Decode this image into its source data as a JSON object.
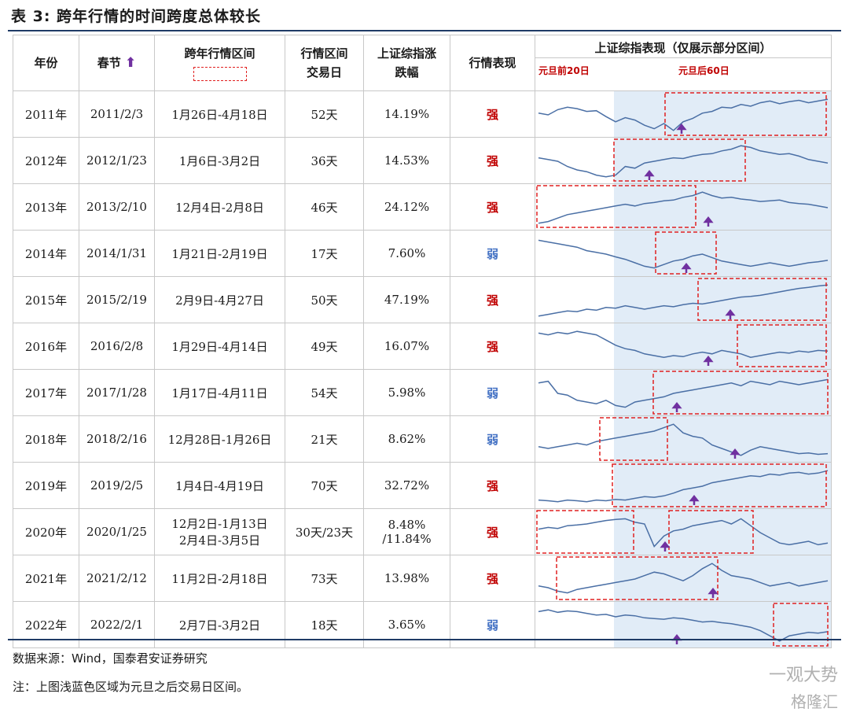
{
  "title": "表 3:  跨年行情的时间跨度总体较长",
  "headers": {
    "year": "年份",
    "spring": "春节",
    "range_l1": "跨年行情区间",
    "days_l1": "行情区间",
    "days_l2": "交易日",
    "gain_l1": "上证综指涨",
    "gain_l2": "跌幅",
    "perf": "行情表现",
    "chart": "上证综指表现（仅展示部分区间）",
    "label_before": "元旦前20日",
    "label_after": "元旦后60日"
  },
  "icons": {
    "arrow": "up-arrow-icon",
    "arrow_color": "#7030a0"
  },
  "colors": {
    "strong": "#c00000",
    "weak": "#4472c4",
    "shade": "#e1ecf7",
    "line": "#4a6fa5",
    "box": "#e02020"
  },
  "rows": [
    {
      "year": "2011年",
      "spring": "2011/2/3",
      "range": "1月26日-4月18日",
      "days": "52天",
      "gain": "14.19%",
      "perf": "强",
      "type": "strong",
      "series": [
        0.55,
        0.5,
        0.65,
        0.72,
        0.68,
        0.6,
        0.62,
        0.45,
        0.3,
        0.42,
        0.35,
        0.2,
        0.1,
        0.25,
        0.05,
        0.3,
        0.4,
        0.55,
        0.6,
        0.72,
        0.7,
        0.8,
        0.75,
        0.85,
        0.9,
        0.82,
        0.88,
        0.92,
        0.85,
        0.9,
        0.95
      ]
    },
    {
      "year": "2012年",
      "spring": "2012/1/23",
      "range": "1月6日-3月2日",
      "days": "36天",
      "gain": "14.53%",
      "perf": "强",
      "type": "strong",
      "series": [
        0.6,
        0.55,
        0.5,
        0.35,
        0.25,
        0.2,
        0.1,
        0.05,
        0.1,
        0.35,
        0.3,
        0.45,
        0.5,
        0.55,
        0.6,
        0.58,
        0.65,
        0.7,
        0.72,
        0.8,
        0.85,
        0.95,
        0.9,
        0.8,
        0.75,
        0.7,
        0.72,
        0.65,
        0.55,
        0.5,
        0.45
      ]
    },
    {
      "year": "2013年",
      "spring": "2013/2/10",
      "range": "12月4日-2月8日",
      "days": "46天",
      "gain": "24.12%",
      "perf": "强",
      "type": "strong",
      "series": [
        0.05,
        0.1,
        0.2,
        0.3,
        0.35,
        0.4,
        0.45,
        0.5,
        0.55,
        0.6,
        0.55,
        0.62,
        0.65,
        0.7,
        0.72,
        0.8,
        0.85,
        0.95,
        0.85,
        0.78,
        0.8,
        0.75,
        0.72,
        0.68,
        0.7,
        0.72,
        0.65,
        0.62,
        0.6,
        0.55,
        0.5
      ]
    },
    {
      "year": "2014年",
      "spring": "2014/1/31",
      "range": "1月21日-2月19日",
      "days": "17天",
      "gain": "7.60%",
      "perf": "弱",
      "type": "weak",
      "series": [
        0.9,
        0.85,
        0.8,
        0.75,
        0.7,
        0.6,
        0.55,
        0.5,
        0.42,
        0.35,
        0.25,
        0.15,
        0.1,
        0.2,
        0.3,
        0.35,
        0.45,
        0.5,
        0.4,
        0.3,
        0.25,
        0.2,
        0.15,
        0.2,
        0.25,
        0.2,
        0.15,
        0.2,
        0.25,
        0.28,
        0.32
      ]
    },
    {
      "year": "2015年",
      "spring": "2015/2/19",
      "range": "2月9日-4月27日",
      "days": "50天",
      "gain": "47.19%",
      "perf": "强",
      "type": "strong",
      "series": [
        0.05,
        0.1,
        0.15,
        0.2,
        0.18,
        0.25,
        0.22,
        0.3,
        0.28,
        0.35,
        0.3,
        0.25,
        0.3,
        0.35,
        0.32,
        0.38,
        0.42,
        0.4,
        0.45,
        0.5,
        0.55,
        0.6,
        0.62,
        0.65,
        0.7,
        0.75,
        0.8,
        0.85,
        0.88,
        0.92,
        0.95
      ]
    },
    {
      "year": "2016年",
      "spring": "2016/2/8",
      "range": "1月29日-4月14日",
      "days": "49天",
      "gain": "16.07%",
      "perf": "强",
      "type": "strong",
      "series": [
        0.9,
        0.85,
        0.92,
        0.88,
        0.95,
        0.9,
        0.85,
        0.7,
        0.55,
        0.45,
        0.4,
        0.3,
        0.25,
        0.2,
        0.25,
        0.22,
        0.3,
        0.35,
        0.3,
        0.4,
        0.35,
        0.3,
        0.2,
        0.25,
        0.3,
        0.35,
        0.32,
        0.38,
        0.35,
        0.4,
        0.38
      ]
    },
    {
      "year": "2017年",
      "spring": "2017/1/28",
      "range": "1月17日-4月11日",
      "days": "54天",
      "gain": "5.98%",
      "perf": "弱",
      "type": "weak",
      "series": [
        0.8,
        0.85,
        0.5,
        0.45,
        0.3,
        0.25,
        0.2,
        0.3,
        0.15,
        0.1,
        0.25,
        0.3,
        0.35,
        0.4,
        0.5,
        0.55,
        0.6,
        0.65,
        0.7,
        0.75,
        0.8,
        0.72,
        0.85,
        0.8,
        0.75,
        0.85,
        0.8,
        0.75,
        0.8,
        0.85,
        0.9
      ]
    },
    {
      "year": "2018年",
      "spring": "2018/2/16",
      "range": "12月28日-1月26日",
      "days": "21天",
      "gain": "8.62%",
      "perf": "弱",
      "type": "weak",
      "series": [
        0.3,
        0.25,
        0.3,
        0.35,
        0.4,
        0.35,
        0.45,
        0.5,
        0.55,
        0.6,
        0.65,
        0.7,
        0.75,
        0.85,
        0.95,
        0.7,
        0.6,
        0.55,
        0.35,
        0.25,
        0.15,
        0.05,
        0.2,
        0.3,
        0.25,
        0.2,
        0.15,
        0.1,
        0.12,
        0.08,
        0.1
      ]
    },
    {
      "year": "2019年",
      "spring": "2019/2/5",
      "range": "1月4日-4月19日",
      "days": "70天",
      "gain": "32.72%",
      "perf": "强",
      "type": "strong",
      "series": [
        0.1,
        0.08,
        0.05,
        0.1,
        0.08,
        0.05,
        0.1,
        0.08,
        0.12,
        0.1,
        0.15,
        0.2,
        0.18,
        0.22,
        0.3,
        0.4,
        0.45,
        0.5,
        0.6,
        0.65,
        0.7,
        0.75,
        0.8,
        0.78,
        0.85,
        0.82,
        0.88,
        0.9,
        0.85,
        0.88,
        0.95
      ]
    },
    {
      "year": "2020年",
      "spring": "2020/1/25",
      "range": "12月2日-1月13日\n2月4日-3月5日",
      "range_l1": "12月2日-1月13日",
      "range_l2": "2月4日-3月5日",
      "days": "30天/23天",
      "gain_l1": "8.48%",
      "gain_l2": "/11.84%",
      "perf": "强",
      "type": "strong",
      "series": [
        0.6,
        0.65,
        0.62,
        0.7,
        0.72,
        0.75,
        0.8,
        0.85,
        0.88,
        0.9,
        0.8,
        0.75,
        0.1,
        0.4,
        0.55,
        0.6,
        0.7,
        0.75,
        0.8,
        0.85,
        0.75,
        0.9,
        0.7,
        0.5,
        0.35,
        0.2,
        0.15,
        0.2,
        0.25,
        0.15,
        0.2
      ]
    },
    {
      "year": "2021年",
      "spring": "2021/2/12",
      "range": "11月2日-2月18日",
      "days": "73天",
      "gain": "13.98%",
      "perf": "强",
      "type": "strong",
      "series": [
        0.3,
        0.25,
        0.15,
        0.1,
        0.2,
        0.25,
        0.3,
        0.35,
        0.4,
        0.45,
        0.5,
        0.6,
        0.7,
        0.65,
        0.55,
        0.45,
        0.6,
        0.8,
        0.95,
        0.75,
        0.6,
        0.55,
        0.5,
        0.4,
        0.3,
        0.35,
        0.4,
        0.3,
        0.35,
        0.4,
        0.45
      ]
    },
    {
      "year": "2022年",
      "spring": "2022/2/1",
      "range": "2月7日-3月2日",
      "days": "18天",
      "gain": "3.65%",
      "perf": "弱",
      "type": "weak",
      "series": [
        0.9,
        0.95,
        0.88,
        0.92,
        0.9,
        0.85,
        0.8,
        0.82,
        0.75,
        0.8,
        0.78,
        0.72,
        0.7,
        0.68,
        0.72,
        0.7,
        0.65,
        0.6,
        0.62,
        0.58,
        0.55,
        0.5,
        0.45,
        0.35,
        0.2,
        0.05,
        0.2,
        0.25,
        0.3,
        0.28,
        0.32
      ]
    }
  ],
  "source": "数据来源：Wind，国泰君安证券研究",
  "note": "注：上图浅蓝色区域为元旦之后交易日区间。",
  "watermark_l1": "一观大势",
  "watermark_l2": "格隆汇"
}
